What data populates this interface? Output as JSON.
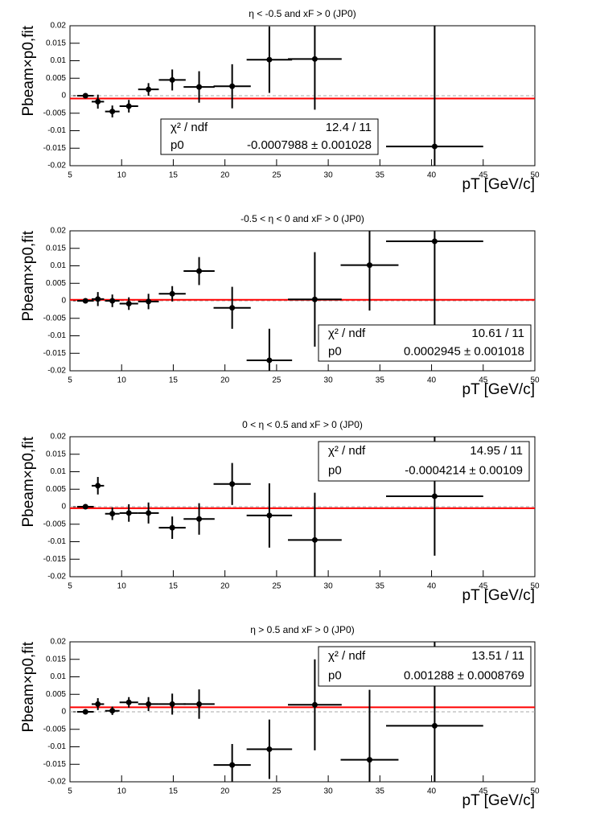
{
  "chart_data": [
    {
      "type": "errorbar",
      "title": "η < -0.5 and xF > 0 (JP0)",
      "xlabel": "pT [GeV/c]",
      "ylabel": "Pbeam×p0,fit",
      "x": [
        6.5,
        7.7,
        9.1,
        10.7,
        12.6,
        14.9,
        17.5,
        20.7,
        24.3,
        28.7,
        40.3
      ],
      "xerr": [
        0.8,
        0.6,
        0.7,
        0.9,
        1.0,
        1.3,
        1.5,
        1.8,
        2.2,
        2.6,
        4.7
      ],
      "values": [
        0.0,
        -0.0017,
        -0.0045,
        -0.003,
        0.0018,
        0.0045,
        0.0025,
        0.0027,
        0.0103,
        0.0105,
        -0.0145
      ],
      "yerr": [
        0.0002,
        0.002,
        0.0017,
        0.0018,
        0.0018,
        0.003,
        0.0045,
        0.0063,
        0.0095,
        0.0145,
        0.035
      ],
      "color": "#000000",
      "fit": {
        "value": -0.0007988,
        "color": "#ff0000"
      },
      "stats": [
        [
          "χ² / ndf",
          "12.4 / 11"
        ],
        [
          "p0",
          "-0.0007988 ± 0.001028"
        ]
      ],
      "xlim": [
        5,
        50
      ],
      "ylim": [
        -0.02,
        0.02
      ],
      "xticks": [
        5,
        10,
        15,
        20,
        25,
        30,
        35,
        40,
        45,
        50
      ],
      "yticks": [
        -0.02,
        -0.015,
        -0.01,
        -0.005,
        0,
        0.005,
        0.01,
        0.015,
        0.02
      ]
    },
    {
      "type": "errorbar",
      "title": "-0.5 < η < 0 and xF > 0 (JP0)",
      "xlabel": "pT [GeV/c]",
      "ylabel": "Pbeam×p0,fit",
      "x": [
        6.5,
        7.7,
        9.1,
        10.7,
        12.6,
        14.9,
        17.5,
        20.7,
        24.3,
        28.7,
        34.0,
        40.3
      ],
      "xerr": [
        0.8,
        0.6,
        0.7,
        0.9,
        1.0,
        1.3,
        1.5,
        1.8,
        2.2,
        2.6,
        2.8,
        4.7
      ],
      "values": [
        0.0,
        0.0005,
        0.0,
        -0.0008,
        -0.0002,
        0.002,
        0.0085,
        -0.002,
        -0.017,
        0.0004,
        0.0102,
        0.017
      ],
      "yerr": [
        0.0002,
        0.002,
        0.0018,
        0.0018,
        0.0022,
        0.0022,
        0.004,
        0.006,
        0.009,
        0.0135,
        0.013,
        0.03
      ],
      "color": "#000000",
      "fit": {
        "value": 0.0002945,
        "color": "#ff0000"
      },
      "stats": [
        [
          "χ² / ndf",
          "10.61 / 11"
        ],
        [
          "p0",
          "0.0002945 ± 0.001018"
        ]
      ],
      "xlim": [
        5,
        50
      ],
      "ylim": [
        -0.02,
        0.02
      ],
      "xticks": [
        5,
        10,
        15,
        20,
        25,
        30,
        35,
        40,
        45,
        50
      ],
      "yticks": [
        -0.02,
        -0.015,
        -0.01,
        -0.005,
        0,
        0.005,
        0.01,
        0.015,
        0.02
      ]
    },
    {
      "type": "errorbar",
      "title": "0 < η < 0.5 and xF > 0 (JP0)",
      "xlabel": "pT [GeV/c]",
      "ylabel": "Pbeam×p0,fit",
      "x": [
        6.5,
        7.7,
        9.1,
        10.7,
        12.6,
        14.9,
        17.5,
        20.7,
        24.3,
        28.7,
        40.3
      ],
      "xerr": [
        0.8,
        0.6,
        0.7,
        0.9,
        1.0,
        1.3,
        1.5,
        1.8,
        2.2,
        2.6,
        4.7
      ],
      "values": [
        0.0,
        0.006,
        -0.002,
        -0.0018,
        -0.0018,
        -0.006,
        -0.0035,
        0.0065,
        -0.0025,
        -0.0095,
        0.003
      ],
      "yerr": [
        0.0002,
        0.0025,
        0.0018,
        0.0025,
        0.003,
        0.0032,
        0.0045,
        0.006,
        0.0092,
        0.0135,
        0.017
      ],
      "color": "#000000",
      "fit": {
        "value": -0.0004214,
        "color": "#ff0000"
      },
      "stats": [
        [
          "χ² / ndf",
          "14.95 / 11"
        ],
        [
          "p0",
          "-0.0004214 ± 0.00109"
        ]
      ],
      "xlim": [
        5,
        50
      ],
      "ylim": [
        -0.02,
        0.02
      ],
      "xticks": [
        5,
        10,
        15,
        20,
        25,
        30,
        35,
        40,
        45,
        50
      ],
      "yticks": [
        -0.02,
        -0.015,
        -0.01,
        -0.005,
        0,
        0.005,
        0.01,
        0.015,
        0.02
      ]
    },
    {
      "type": "errorbar",
      "title": "η > 0.5 and xF > 0 (JP0)",
      "xlabel": "pT [GeV/c]",
      "ylabel": "Pbeam×p0,fit",
      "x": [
        6.5,
        7.7,
        9.1,
        10.7,
        12.6,
        14.9,
        17.5,
        20.7,
        24.3,
        28.7,
        34.0,
        40.3
      ],
      "xerr": [
        0.8,
        0.6,
        0.7,
        0.9,
        1.0,
        1.3,
        1.5,
        1.8,
        2.2,
        2.6,
        2.8,
        4.7
      ],
      "values": [
        0.0,
        0.0022,
        0.0003,
        0.0027,
        0.0022,
        0.0022,
        0.0022,
        -0.0152,
        -0.0107,
        0.002,
        -0.0137,
        -0.004
      ],
      "yerr": [
        0.0002,
        0.0017,
        0.0012,
        0.0015,
        0.002,
        0.003,
        0.0042,
        0.006,
        0.0085,
        0.013,
        0.02,
        0.024
      ],
      "color": "#000000",
      "fit": {
        "value": 0.001288,
        "color": "#ff0000"
      },
      "stats": [
        [
          "χ² / ndf",
          "13.51 / 11"
        ],
        [
          "p0",
          "0.001288 ± 0.0008769"
        ]
      ],
      "xlim": [
        5,
        50
      ],
      "ylim": [
        -0.02,
        0.02
      ],
      "xticks": [
        5,
        10,
        15,
        20,
        25,
        30,
        35,
        40,
        45,
        50
      ],
      "yticks": [
        -0.02,
        -0.015,
        -0.01,
        -0.005,
        0,
        0.005,
        0.01,
        0.015,
        0.02
      ]
    }
  ]
}
